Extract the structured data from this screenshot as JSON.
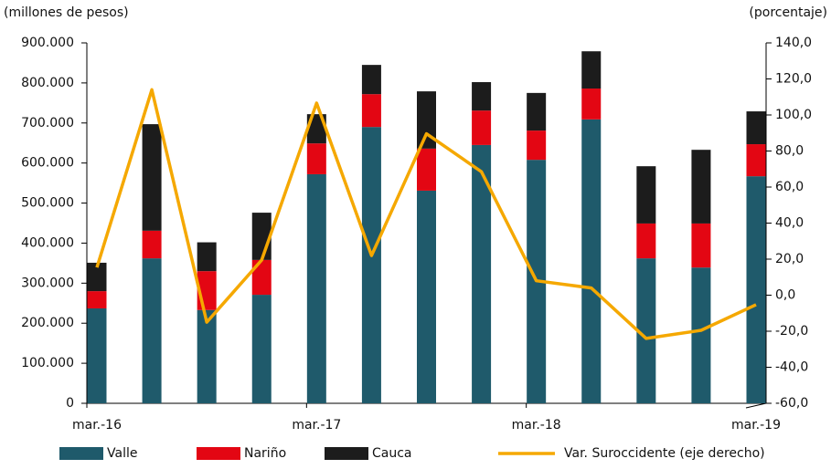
{
  "chart_data": {
    "type": "bar-line",
    "y_label": "(millones  de pesos)",
    "y2_label": "(porcentaje)",
    "categories": [
      "mar.-16",
      null,
      null,
      null,
      "mar.-17",
      null,
      null,
      null,
      "mar.-18",
      null,
      null,
      null,
      "mar.-19"
    ],
    "series": [
      {
        "name": "Valle",
        "type": "bar",
        "color": "#1f5a6b",
        "values": [
          237000,
          362000,
          233000,
          271000,
          572000,
          690000,
          531000,
          645000,
          608000,
          709000,
          362000,
          339000,
          567000
        ]
      },
      {
        "name": "Nariño",
        "type": "bar",
        "color": "#e30613",
        "values": [
          43000,
          69000,
          97000,
          87000,
          77000,
          82000,
          105000,
          86000,
          73000,
          77000,
          87000,
          110000,
          80000
        ]
      },
      {
        "name": "Cauca",
        "type": "bar",
        "color": "#1c1c1c",
        "values": [
          71000,
          266000,
          72000,
          118000,
          73000,
          73000,
          143000,
          71000,
          94000,
          93000,
          143000,
          184000,
          82000
        ]
      },
      {
        "name": "Var. Suroccidente (eje derecho)",
        "type": "line",
        "axis": "y2",
        "color": "#f5a800",
        "values": [
          15.4,
          114,
          -15,
          19.5,
          106.6,
          22,
          89.6,
          68.5,
          8,
          4,
          -24,
          -19.5,
          -5.3
        ]
      }
    ],
    "ylim": [
      0,
      900000
    ],
    "yticks": [
      0,
      {
        "value": 100000,
        "label": "100.000"
      },
      {
        "value": 200000,
        "label": "200.000"
      },
      {
        "value": 300000,
        "label": "300.000"
      },
      {
        "value": 400000,
        "label": "400.000"
      },
      {
        "value": 500000,
        "label": "500.000"
      },
      {
        "value": 600000,
        "label": "600.000"
      },
      {
        "value": 700000,
        "label": "700.000"
      },
      {
        "value": 800000,
        "label": "800.000"
      },
      {
        "value": 900000,
        "label": "900.000"
      }
    ],
    "y2lim": [
      -60,
      140
    ],
    "y2ticks": [
      {
        "value": -60,
        "label": "-60,0"
      },
      {
        "value": -40,
        "label": "-40,0"
      },
      {
        "value": -20,
        "label": "-20,0"
      },
      {
        "value": 0,
        "label": "0,0"
      },
      {
        "value": 20,
        "label": "20,0"
      },
      {
        "value": 40,
        "label": "40,0"
      },
      {
        "value": 60,
        "label": "60,0"
      },
      {
        "value": 80,
        "label": "80,0"
      },
      {
        "value": 100,
        "label": "100,0"
      },
      {
        "value": 120,
        "label": "120,0"
      },
      {
        "value": 140,
        "label": "140,0"
      }
    ],
    "legend": "bottom"
  }
}
